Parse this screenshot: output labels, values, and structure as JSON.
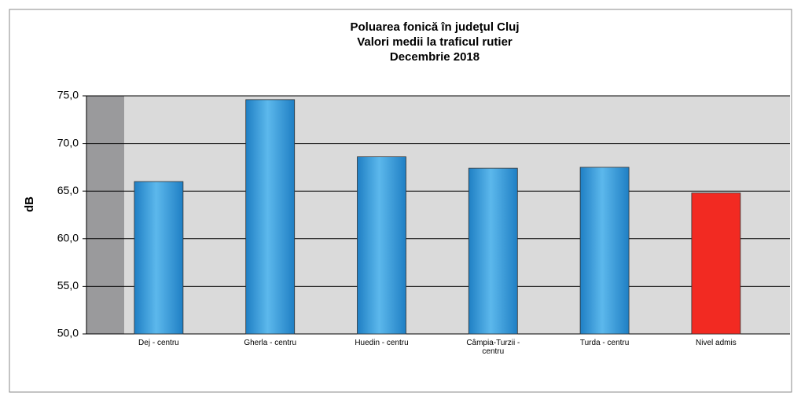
{
  "chart_data": {
    "type": "bar",
    "title": [
      "Poluarea fonică în judeţul Cluj",
      "Valori medii la traficul rutier",
      "Decembrie 2018"
    ],
    "y_label": "dB",
    "categories": [
      "Dej - centru",
      "Gherla - centru",
      "Huedin - centru",
      "Câmpia-Turzii - centru",
      "Turda - centru",
      "Nivel admis"
    ],
    "values": [
      66.0,
      74.6,
      68.6,
      67.4,
      67.5,
      64.8
    ],
    "colors": [
      "#3a9fdc",
      "#3a9fdc",
      "#3a9fdc",
      "#3a9fdc",
      "#3a9fdc",
      "#f22a22"
    ],
    "ylim": [
      50,
      75
    ],
    "yticks": [
      {
        "value": 50,
        "label": "50,0"
      },
      {
        "value": 55,
        "label": "55,0"
      },
      {
        "value": 60,
        "label": "60,0"
      },
      {
        "value": 65,
        "label": "65,0"
      },
      {
        "value": 70,
        "label": "70,0"
      },
      {
        "value": 75,
        "label": "75,0"
      }
    ],
    "grid": true
  }
}
